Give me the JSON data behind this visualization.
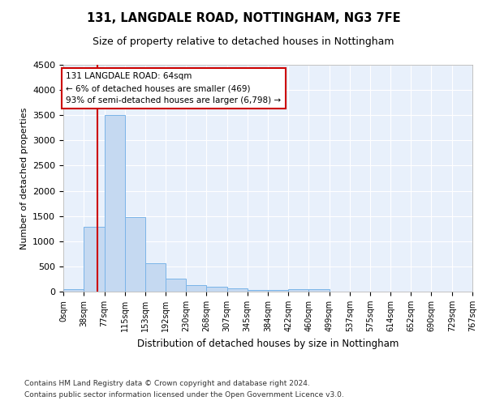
{
  "title1": "131, LANGDALE ROAD, NOTTINGHAM, NG3 7FE",
  "title2": "Size of property relative to detached houses in Nottingham",
  "xlabel": "Distribution of detached houses by size in Nottingham",
  "ylabel": "Number of detached properties",
  "bar_color": "#c5d9f1",
  "bar_edge_color": "#7ab4e8",
  "bg_color": "#e8f0fb",
  "grid_color": "#ffffff",
  "annotation_box_color": "#cc0000",
  "red_line_x": 64,
  "bin_edges": [
    0,
    38,
    77,
    115,
    153,
    192,
    230,
    268,
    307,
    345,
    384,
    422,
    460,
    499,
    537,
    575,
    614,
    652,
    690,
    729,
    767
  ],
  "bar_heights": [
    50,
    1280,
    3500,
    1480,
    570,
    250,
    130,
    90,
    70,
    40,
    30,
    50,
    55,
    0,
    0,
    0,
    0,
    0,
    0,
    0
  ],
  "annotation_line1": "131 LANGDALE ROAD: 64sqm",
  "annotation_line2": "← 6% of detached houses are smaller (469)",
  "annotation_line3": "93% of semi-detached houses are larger (6,798) →",
  "footnote1": "Contains HM Land Registry data © Crown copyright and database right 2024.",
  "footnote2": "Contains public sector information licensed under the Open Government Licence v3.0.",
  "ylim": [
    0,
    4500
  ],
  "yticks": [
    0,
    500,
    1000,
    1500,
    2000,
    2500,
    3000,
    3500,
    4000,
    4500
  ]
}
